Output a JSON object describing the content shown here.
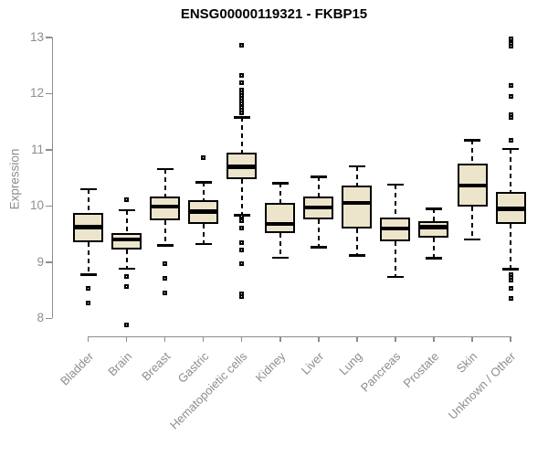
{
  "title": "ENSG00000119321 - FKBP15",
  "colors": {
    "box_fill": "#ECE5CB",
    "box_border": "#000000",
    "median": "#000000",
    "whisker": "#000000",
    "outlier": "#000000",
    "axis": "#8d8d8d",
    "title_text": "#000000",
    "background": "#ffffff"
  },
  "chart_data": {
    "type": "boxplot",
    "title": "ENSG00000119321 - FKBP15",
    "xlabel": "",
    "ylabel": "Expression",
    "ylim": [
      8,
      13
    ],
    "yticks": [
      8,
      9,
      10,
      11,
      12,
      13
    ],
    "grid": false,
    "legend": "none",
    "categories": [
      "Bladder",
      "Brain",
      "Breast",
      "Gastric",
      "Hematopoietic cells",
      "Kidney",
      "Liver",
      "Lung",
      "Pancreas",
      "Prostate",
      "Skin",
      "Unknown / Other"
    ],
    "series": [
      {
        "name": "Bladder",
        "whisker_low": 8.78,
        "q1": 9.35,
        "median": 9.63,
        "q3": 9.88,
        "whisker_high": 10.3,
        "outliers": [
          8.54,
          8.27
        ]
      },
      {
        "name": "Brain",
        "whisker_low": 8.89,
        "q1": 9.23,
        "median": 9.41,
        "q3": 9.52,
        "whisker_high": 9.93,
        "outliers": [
          10.11,
          8.74,
          8.57,
          7.89
        ]
      },
      {
        "name": "Breast",
        "whisker_low": 9.3,
        "q1": 9.74,
        "median": 9.99,
        "q3": 10.16,
        "whisker_high": 10.66,
        "outliers": [
          8.98,
          8.72,
          8.46
        ]
      },
      {
        "name": "Gastric",
        "whisker_low": 9.33,
        "q1": 9.68,
        "median": 9.9,
        "q3": 10.11,
        "whisker_high": 10.42,
        "outliers": [
          10.86
        ]
      },
      {
        "name": "Hematopoietic cells",
        "whisker_low": 9.84,
        "q1": 10.48,
        "median": 10.7,
        "q3": 10.94,
        "whisker_high": 11.58,
        "outliers": [
          12.86,
          12.32,
          12.2,
          12.06,
          12.01,
          11.96,
          11.91,
          11.86,
          11.81,
          11.76,
          11.71,
          11.66,
          9.81,
          9.77,
          9.73,
          9.6,
          9.35,
          9.22,
          8.98,
          8.43,
          8.38
        ]
      },
      {
        "name": "Kidney",
        "whisker_low": 9.08,
        "q1": 9.52,
        "median": 9.68,
        "q3": 10.06,
        "whisker_high": 10.41,
        "outliers": []
      },
      {
        "name": "Liver",
        "whisker_low": 9.27,
        "q1": 9.76,
        "median": 9.98,
        "q3": 10.16,
        "whisker_high": 10.52,
        "outliers": []
      },
      {
        "name": "Lung",
        "whisker_low": 9.12,
        "q1": 9.6,
        "median": 10.06,
        "q3": 10.36,
        "whisker_high": 10.71,
        "outliers": []
      },
      {
        "name": "Pancreas",
        "whisker_low": 8.74,
        "q1": 9.37,
        "median": 9.6,
        "q3": 9.79,
        "whisker_high": 10.38,
        "outliers": []
      },
      {
        "name": "Prostate",
        "whisker_low": 9.07,
        "q1": 9.44,
        "median": 9.63,
        "q3": 9.73,
        "whisker_high": 9.95,
        "outliers": []
      },
      {
        "name": "Skin",
        "whisker_low": 9.41,
        "q1": 9.99,
        "median": 10.37,
        "q3": 10.75,
        "whisker_high": 11.17,
        "outliers": []
      },
      {
        "name": "Unknown / Other",
        "whisker_low": 8.88,
        "q1": 9.68,
        "median": 9.95,
        "q3": 10.25,
        "whisker_high": 11.02,
        "outliers": [
          12.97,
          12.89,
          12.85,
          12.15,
          11.95,
          11.63,
          11.58,
          11.17,
          8.78,
          8.73,
          8.68,
          8.54,
          8.35
        ]
      }
    ]
  }
}
